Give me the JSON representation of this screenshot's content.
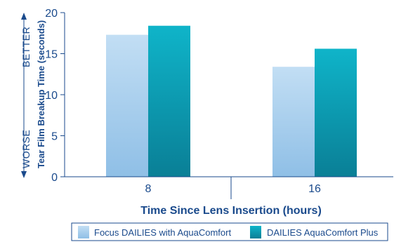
{
  "chart_data": {
    "type": "bar",
    "categories": [
      "8",
      "16"
    ],
    "series": [
      {
        "name": "Focus DAILIES with AquaComfort",
        "values": [
          17.3,
          13.4
        ],
        "color": "#a9d0ef"
      },
      {
        "name": "DAILIES AquaComfort Plus",
        "values": [
          18.4,
          15.6
        ],
        "color": "#0aa3b8"
      }
    ],
    "title": "",
    "xlabel": "Time Since Lens Insertion (hours)",
    "ylabel": "Tear Film Breakup Time (seconds)",
    "ylim": [
      0,
      20
    ],
    "yticks": [
      "0",
      "5",
      "10",
      "15",
      "20"
    ],
    "y_better_label": "BETTER",
    "y_worse_label": "WORSE",
    "grid": false,
    "legend_position": "bottom"
  },
  "colors": {
    "axis": "#1a4a8c",
    "text": "#1a4a8c"
  }
}
